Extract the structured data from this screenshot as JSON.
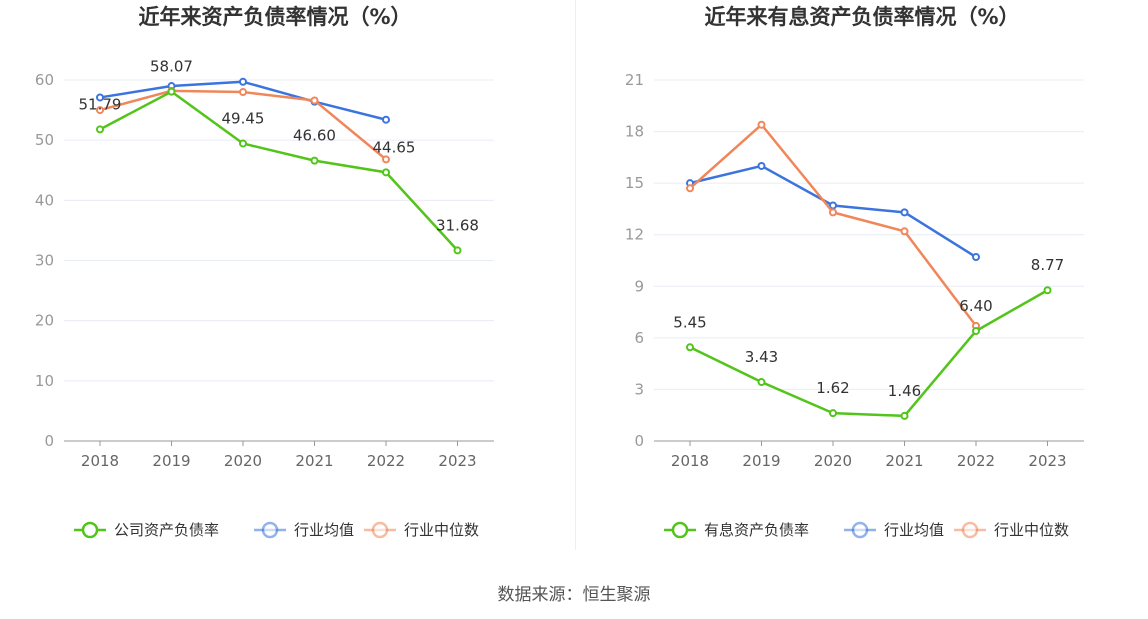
{
  "colors": {
    "company": "#52c41a",
    "industry_avg": "#3b74de",
    "industry_median": "#f0865a",
    "grid": "#e8ecf5",
    "axis": "#999999"
  },
  "source": "数据来源：恒生聚源",
  "chart_data": [
    {
      "type": "line",
      "title": "近年来资产负债率情况（%）",
      "categories": [
        "2018",
        "2019",
        "2020",
        "2021",
        "2022",
        "2023"
      ],
      "ylim": [
        0,
        60
      ],
      "yticks": [
        0,
        10,
        20,
        30,
        40,
        50,
        60
      ],
      "series": [
        {
          "name": "公司资产负债率",
          "key": "company",
          "values": [
            51.79,
            58.07,
            49.45,
            46.6,
            44.65,
            31.68
          ],
          "labels": [
            "51.79",
            "58.07",
            "49.45",
            "46.60",
            "44.65",
            "31.68"
          ]
        },
        {
          "name": "行业均值",
          "key": "industry_avg",
          "values": [
            57.1,
            59.0,
            59.7,
            56.4,
            53.4,
            null
          ]
        },
        {
          "name": "行业中位数",
          "key": "industry_median",
          "values": [
            55.0,
            58.2,
            58.0,
            56.6,
            46.8,
            null
          ]
        }
      ]
    },
    {
      "type": "line",
      "title": "近年来有息资产负债率情况（%）",
      "categories": [
        "2018",
        "2019",
        "2020",
        "2021",
        "2022",
        "2023"
      ],
      "ylim": [
        0,
        21
      ],
      "yticks": [
        0,
        3,
        6,
        9,
        12,
        15,
        18,
        21
      ],
      "series": [
        {
          "name": "有息资产负债率",
          "key": "company",
          "values": [
            5.45,
            3.43,
            1.62,
            1.46,
            6.4,
            8.77
          ],
          "labels": [
            "5.45",
            "3.43",
            "1.62",
            "1.46",
            "6.40",
            "8.77"
          ]
        },
        {
          "name": "行业均值",
          "key": "industry_avg",
          "values": [
            15.0,
            16.0,
            13.7,
            13.3,
            10.7,
            null
          ]
        },
        {
          "name": "行业中位数",
          "key": "industry_median",
          "values": [
            14.7,
            18.4,
            13.3,
            12.2,
            6.7,
            null
          ]
        }
      ]
    }
  ]
}
